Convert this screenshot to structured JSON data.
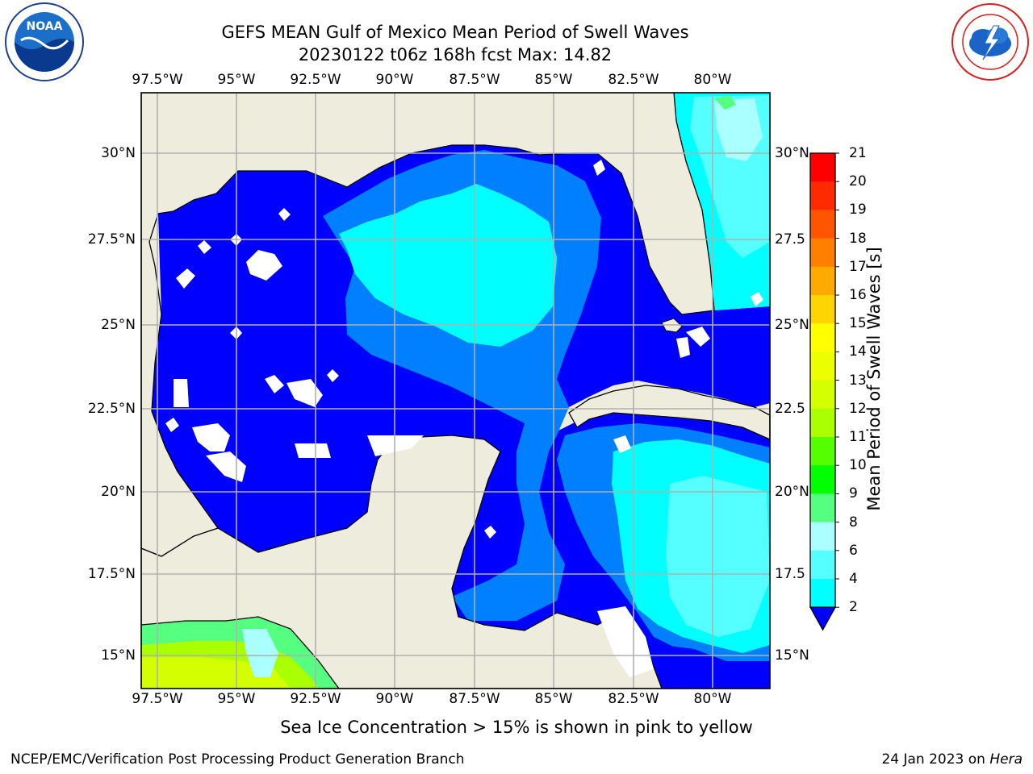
{
  "header": {
    "title_line1": "GEFS MEAN Gulf of Mexico Mean Period of Swell Waves",
    "title_line2": "20230122 t06z 168h fcst   Max: 14.82"
  },
  "logos": {
    "noaa_text": "NOAA",
    "noaa_ring": "NATIONAL OCEANIC AND ATMOSPHERIC ADMINISTRATION · U.S. DEPARTMENT OF COMMERCE",
    "nws_ring": "NATIONAL WEATHER SERVICE"
  },
  "map": {
    "lon_ticks": [
      "97.5°W",
      "95°W",
      "92.5°W",
      "90°W",
      "87.5°W",
      "85°W",
      "82.5°W",
      "80°W"
    ],
    "lat_ticks_left": [
      "30°N",
      "27.5°N",
      "25°N",
      "22.5°N",
      "20°N",
      "17.5°N",
      "15°N"
    ],
    "lat_ticks_right": [
      "30°N",
      "27.5",
      "25°N",
      "22.5",
      "20°N",
      "17.5",
      "15°N"
    ],
    "colors": {
      "land": "#eeecdc",
      "grid": "#b0b0b0",
      "coast": "#000000"
    }
  },
  "colorbar": {
    "label": "Mean Period of Swell Waves [s]",
    "ticks": [
      "21",
      "20",
      "19",
      "18",
      "17",
      "16",
      "15",
      "14",
      "13",
      "12",
      "11",
      "10",
      "9",
      "8",
      "6",
      "4",
      "2"
    ],
    "colors": [
      "#ff0000",
      "#ff2a00",
      "#ff5500",
      "#ff8000",
      "#ffaa00",
      "#ffd400",
      "#ffff00",
      "#ecff00",
      "#d4ff00",
      "#aaff00",
      "#55ff00",
      "#00ff00",
      "#55ff80",
      "#aaffff",
      "#55ffff",
      "#00ffff",
      "#0080ff",
      "#0000ff"
    ]
  },
  "note": "Sea Ice Concentration > 15% is shown in pink to yellow",
  "footer": {
    "left": "NCEP/EMC/Verification Post Processing Product Generation Branch",
    "date": "24 Jan 2023 on ",
    "machine": "Hera"
  }
}
